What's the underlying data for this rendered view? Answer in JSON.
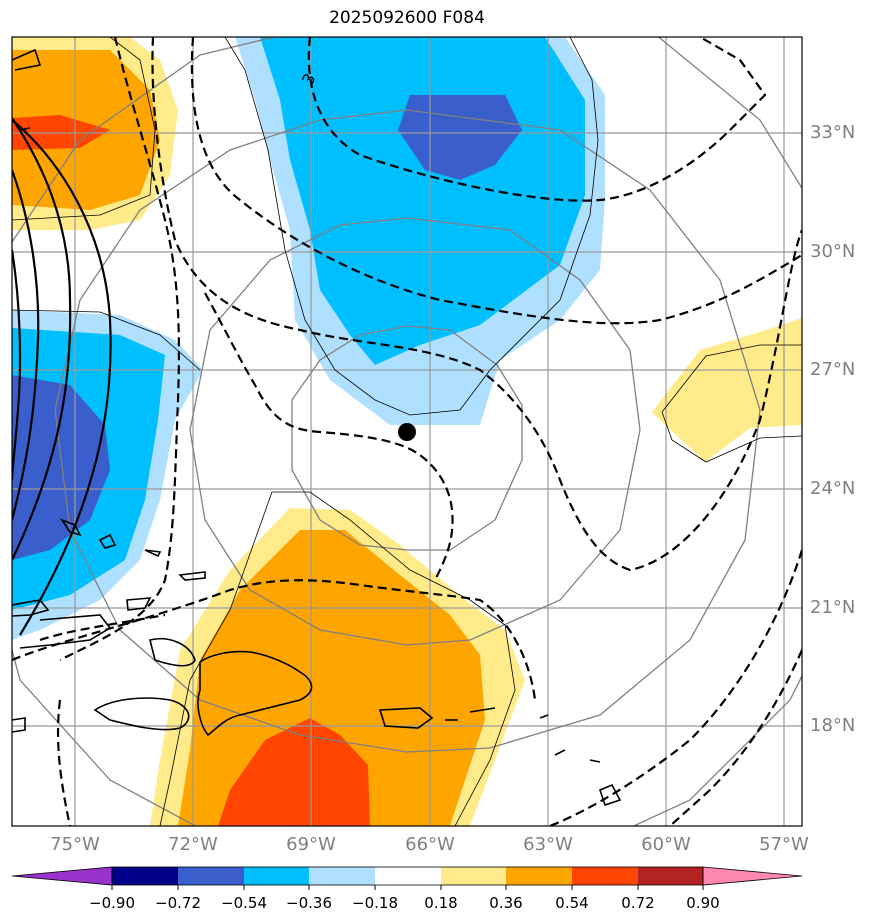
{
  "title": "2025092600 F084",
  "latitude_labels": [
    "33°N",
    "30°N",
    "27°N",
    "24°N",
    "21°N",
    "18°N"
  ],
  "longitude_labels": [
    "75°W",
    "72°W",
    "69°W",
    "66°W",
    "63°W",
    "60°W",
    "57°W"
  ],
  "colorbar": {
    "levels": [
      "−0.90",
      "−0.72",
      "−0.54",
      "−0.36",
      "−0.18",
      "0.18",
      "0.36",
      "0.54",
      "0.72",
      "0.90"
    ],
    "colors": [
      "#9932CC",
      "#00008B",
      "#3A5FCD",
      "#00BFFF",
      "#B0E0FF",
      "#FFFFFF",
      "#FFEB8A",
      "#FFA500",
      "#FF4500",
      "#B22222",
      "#FF88B0"
    ]
  },
  "contour_label": "3",
  "storm_center": {
    "lon": -66.6,
    "lat": 25.4
  }
}
